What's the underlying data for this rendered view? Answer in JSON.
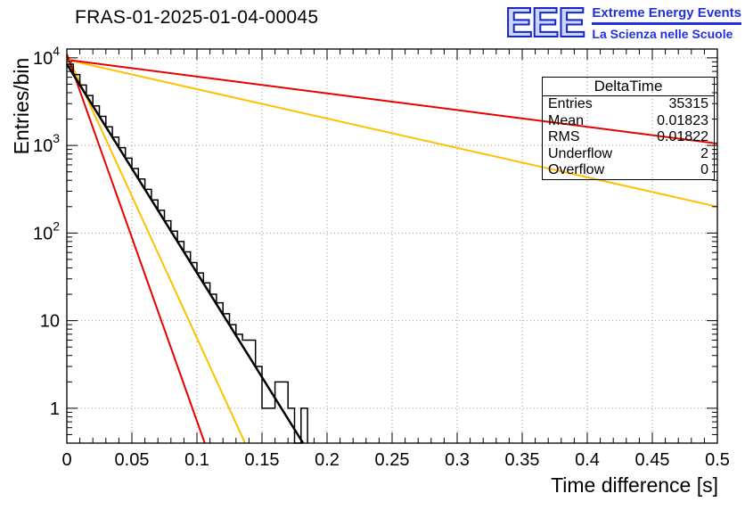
{
  "header": {
    "title": "FRAS-01-2025-01-04-00045",
    "logo": {
      "acronym": "EEE",
      "line1": "Extreme Energy Events",
      "line2": "La Scienza nelle Scuole",
      "color": "#2130e0"
    }
  },
  "stats": {
    "title": "DeltaTime",
    "rows": [
      {
        "label": "Entries",
        "value": "35315"
      },
      {
        "label": "Mean",
        "value": "0.01823"
      },
      {
        "label": "RMS",
        "value": "0.01822"
      },
      {
        "label": "Underflow",
        "value": "2"
      },
      {
        "label": "Overflow",
        "value": "0"
      }
    ]
  },
  "chart_data": {
    "type": "bar",
    "title": "FRAS-01-2025-01-04-00045",
    "xlabel": "Time difference [s]",
    "ylabel": "Entries/bin",
    "axes": {
      "xlim": [
        0,
        0.5
      ],
      "ylim": [
        0.4,
        12600
      ],
      "ylog": true,
      "grid": true,
      "x_ticks": [
        {
          "v": 0,
          "label": "0"
        },
        {
          "v": 0.05,
          "label": "0.05"
        },
        {
          "v": 0.1,
          "label": "0.1"
        },
        {
          "v": 0.15,
          "label": "0.15"
        },
        {
          "v": 0.2,
          "label": "0.2"
        },
        {
          "v": 0.25,
          "label": "0.25"
        },
        {
          "v": 0.3,
          "label": "0.3"
        },
        {
          "v": 0.35,
          "label": "0.35"
        },
        {
          "v": 0.4,
          "label": "0.4"
        },
        {
          "v": 0.45,
          "label": "0.45"
        },
        {
          "v": 0.5,
          "label": "0.5"
        }
      ],
      "y_ticks": [
        {
          "v": 1,
          "m": "1"
        },
        {
          "v": 10,
          "m": "10"
        },
        {
          "v": 100,
          "m": "10",
          "e": "2"
        },
        {
          "v": 1000,
          "m": "10",
          "e": "3"
        },
        {
          "v": 10000,
          "m": "10",
          "e": "4"
        }
      ]
    },
    "histogram": {
      "name": "DeltaTime",
      "color": "#000000",
      "start": 0,
      "bin_width": 0.005,
      "counts": [
        8469,
        6437,
        4892,
        3718,
        2826,
        2148,
        1632,
        1241,
        943,
        717,
        545,
        414,
        315,
        239,
        182,
        138,
        105,
        80,
        61,
        46,
        35,
        27,
        20,
        16,
        12,
        9,
        7,
        6,
        6,
        3,
        1,
        1,
        2,
        2,
        1,
        0,
        1
      ]
    },
    "fit_line": {
      "name": "exponential-fit",
      "color": "#000000",
      "x": [
        0,
        0.1816
      ],
      "y": [
        8469,
        0.4
      ]
    },
    "reference_lines": [
      {
        "name": "yellow-shallow",
        "color": "#ffc000",
        "x": [
          0,
          0.5
        ],
        "y": [
          9500,
          200
        ]
      },
      {
        "name": "red-shallow",
        "color": "#e60000",
        "x": [
          0,
          0.5
        ],
        "y": [
          9500,
          1050
        ]
      },
      {
        "name": "yellow-steep",
        "color": "#ffc000",
        "x": [
          0,
          0.137
        ],
        "y": [
          11000,
          0.4
        ]
      },
      {
        "name": "red-steep",
        "color": "#e60000",
        "x": [
          0,
          0.106
        ],
        "y": [
          11000,
          0.4
        ]
      }
    ],
    "stats_box": {
      "title": "DeltaTime",
      "entries": 35315,
      "mean": 0.01823,
      "rms": 0.01822,
      "underflow": 2,
      "overflow": 0
    }
  }
}
